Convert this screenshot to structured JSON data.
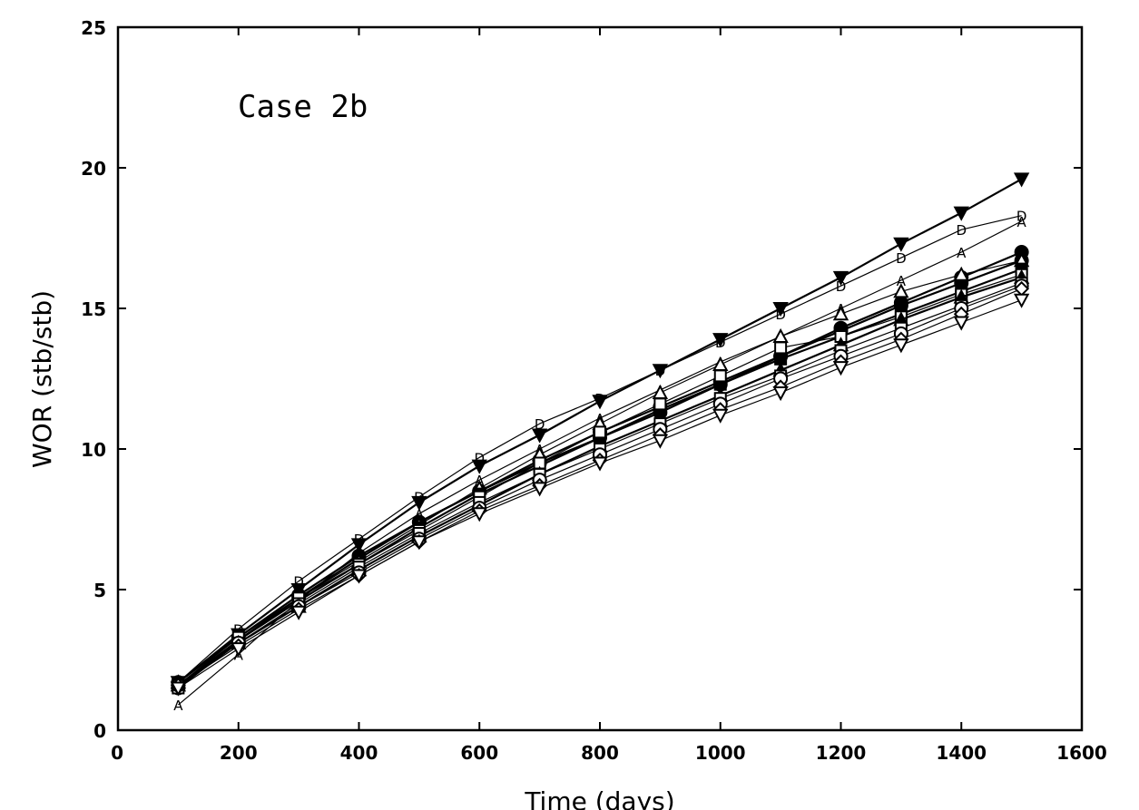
{
  "chart_data": {
    "type": "line",
    "title": "",
    "annotation": "Case 2b",
    "xlabel": "Time (days)",
    "ylabel": "WOR (stb/stb)",
    "xlim": [
      0,
      1600
    ],
    "ylim": [
      0,
      25
    ],
    "xticks": [
      0,
      200,
      400,
      600,
      800,
      1000,
      1200,
      1400,
      1600
    ],
    "yticks": [
      0,
      5,
      10,
      15,
      20,
      25
    ],
    "grid": false,
    "legend": "none",
    "x": [
      100,
      200,
      300,
      400,
      500,
      600,
      700,
      800,
      900,
      1000,
      1100,
      1200,
      1300,
      1400,
      1500
    ],
    "series": [
      {
        "marker": "triangle-down-filled",
        "weight": 2.2,
        "values": [
          1.7,
          3.4,
          5.0,
          6.6,
          8.1,
          9.4,
          10.5,
          11.7,
          12.8,
          13.9,
          15.0,
          16.1,
          17.3,
          18.4,
          19.6
        ]
      },
      {
        "marker": "letter-D",
        "weight": 1.2,
        "values": [
          1.7,
          3.6,
          5.3,
          6.8,
          8.3,
          9.7,
          10.9,
          11.8,
          12.8,
          13.8,
          14.8,
          15.8,
          16.8,
          17.8,
          18.3
        ]
      },
      {
        "marker": "letter-A",
        "weight": 1.2,
        "values": [
          0.9,
          2.7,
          4.6,
          6.3,
          7.7,
          8.9,
          10.0,
          11.1,
          12.1,
          13.1,
          14.0,
          15.0,
          16.0,
          17.0,
          18.1
        ]
      },
      {
        "marker": "circle-filled",
        "weight": 2.2,
        "values": [
          1.5,
          3.2,
          4.7,
          6.1,
          7.4,
          8.5,
          9.5,
          10.4,
          11.3,
          12.3,
          13.3,
          14.3,
          15.2,
          16.1,
          17.0
        ]
      },
      {
        "marker": "circle-filled",
        "weight": 2.2,
        "values": [
          1.7,
          3.3,
          4.8,
          6.2,
          7.4,
          8.5,
          9.6,
          10.6,
          11.5,
          12.4,
          13.3,
          14.2,
          15.1,
          15.9,
          16.7
        ]
      },
      {
        "marker": "triangle-up-open",
        "weight": 1.2,
        "values": [
          1.7,
          3.3,
          4.7,
          6.0,
          7.3,
          8.6,
          9.8,
          10.9,
          12.0,
          13.0,
          14.0,
          14.8,
          15.6,
          16.2,
          16.7
        ]
      },
      {
        "marker": "square-filled",
        "weight": 2.2,
        "values": [
          1.6,
          3.2,
          4.6,
          5.9,
          7.2,
          8.4,
          9.4,
          10.4,
          11.4,
          12.3,
          13.2,
          14.0,
          14.8,
          15.6,
          16.4
        ]
      },
      {
        "marker": "square-open",
        "weight": 1.2,
        "values": [
          1.6,
          3.3,
          4.7,
          5.9,
          7.1,
          8.3,
          9.5,
          10.6,
          11.6,
          12.6,
          13.6,
          14.0,
          14.7,
          15.5,
          16.2
        ]
      },
      {
        "marker": "triangle-up-filled",
        "weight": 2.2,
        "values": [
          1.6,
          3.1,
          4.4,
          5.7,
          6.9,
          8.0,
          9.1,
          10.1,
          11.0,
          11.9,
          12.8,
          13.7,
          14.6,
          15.4,
          16.1
        ]
      },
      {
        "marker": "square-open",
        "weight": 1.2,
        "values": [
          1.5,
          3.1,
          4.5,
          5.8,
          7.0,
          8.1,
          9.1,
          10.0,
          10.9,
          11.8,
          12.6,
          13.5,
          14.3,
          15.1,
          15.9
        ]
      },
      {
        "marker": "circle-open",
        "weight": 1.2,
        "values": [
          1.6,
          3.1,
          4.4,
          5.6,
          6.8,
          7.9,
          8.9,
          9.8,
          10.7,
          11.6,
          12.5,
          13.3,
          14.1,
          15.0,
          15.8
        ]
      },
      {
        "marker": "diamond-open",
        "weight": 1.2,
        "values": [
          1.6,
          3.0,
          4.3,
          5.5,
          6.7,
          7.8,
          8.7,
          9.6,
          10.5,
          11.4,
          12.2,
          13.1,
          13.9,
          14.8,
          15.7
        ]
      },
      {
        "marker": "triangle-down-open",
        "weight": 1.2,
        "values": [
          1.5,
          2.9,
          4.2,
          5.5,
          6.7,
          7.7,
          8.6,
          9.5,
          10.3,
          11.2,
          12.0,
          12.9,
          13.7,
          14.5,
          15.3
        ]
      }
    ]
  }
}
